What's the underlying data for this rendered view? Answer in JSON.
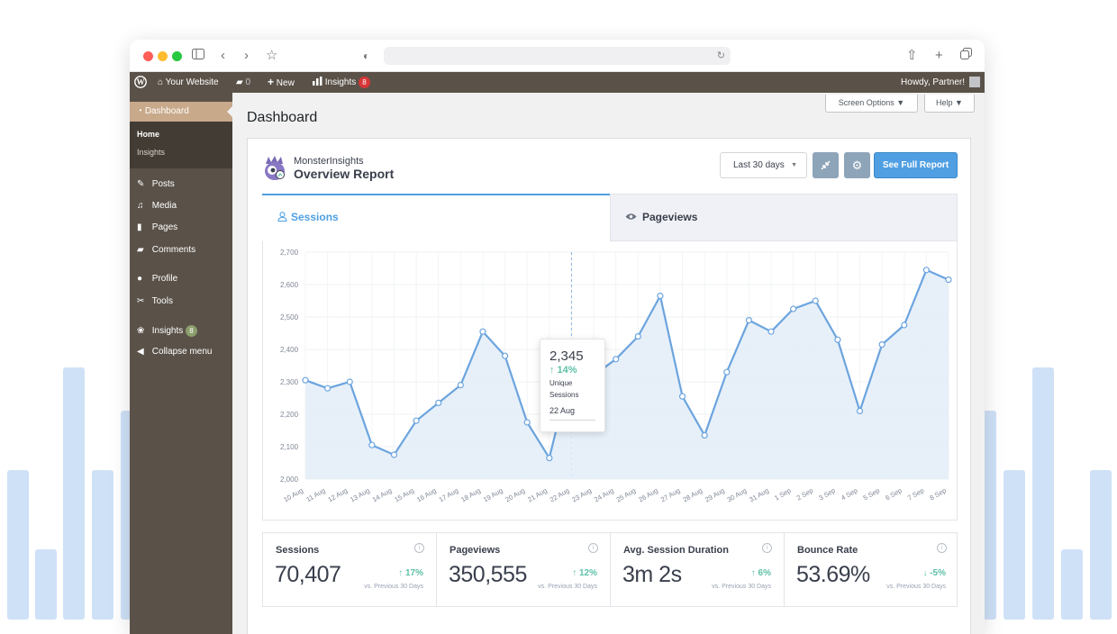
{
  "browser": {
    "traffic_lights": [
      "#ff5f57",
      "#febc2e",
      "#28c840"
    ],
    "icons": [
      "sidebar-icon",
      "back-icon",
      "forward-icon",
      "star-icon",
      "shield-icon",
      "reload-icon",
      "share-icon",
      "plus-icon",
      "tabs-icon"
    ]
  },
  "admin_bar": {
    "site_name": "Your Website",
    "comments_count": "0",
    "new_label": "New",
    "insights_label": "Insights",
    "insights_badge": "8",
    "howdy": "Howdy, Partner!"
  },
  "sidebar": {
    "dashboard": "Dashboard",
    "sub_items": [
      "Home",
      "Insights"
    ],
    "items": [
      {
        "label": "Posts",
        "icon": "pin-icon"
      },
      {
        "label": "Media",
        "icon": "media-icon"
      },
      {
        "label": "Pages",
        "icon": "pages-icon"
      },
      {
        "label": "Comments",
        "icon": "comment-icon"
      },
      {
        "label": "Profile",
        "icon": "user-icon"
      },
      {
        "label": "Tools",
        "icon": "wrench-icon"
      },
      {
        "label": "Insights",
        "icon": "insights-icon",
        "badge": "8"
      },
      {
        "label": "Collapse menu",
        "icon": "collapse-icon"
      }
    ]
  },
  "screen_options": "Screen Options ▼",
  "help": "Help ▼",
  "page_title": "Dashboard",
  "report": {
    "brand": "MonsterInsights",
    "title": "Overview Report",
    "period": "Last 30 days",
    "full_report": "See Full Report",
    "tab_sessions": "Sessions",
    "tab_pageviews": "Pageviews"
  },
  "tooltip": {
    "value": "2,345",
    "change": "↑ 14%",
    "label": "Unique Sessions",
    "date": "22 Aug"
  },
  "chart_data": {
    "type": "area",
    "x": [
      "10 Aug",
      "11 Aug",
      "12 Aug",
      "13 Aug",
      "14 Aug",
      "15 Aug",
      "16 Aug",
      "17 Aug",
      "18 Aug",
      "19 Aug",
      "20 Aug",
      "21 Aug",
      "22 Aug",
      "23 Aug",
      "24 Aug",
      "25 Aug",
      "26 Aug",
      "27 Aug",
      "28 Aug",
      "29 Aug",
      "30 Aug",
      "31 Aug",
      "1 Sep",
      "2 Sep",
      "3 Sep",
      "4 Sep",
      "5 Sep",
      "6 Sep",
      "7 Sep",
      "8 Sep"
    ],
    "values": [
      2305,
      2280,
      2300,
      2105,
      2075,
      2180,
      2235,
      2290,
      2455,
      2380,
      2175,
      2065,
      2345,
      2320,
      2370,
      2440,
      2565,
      2255,
      2135,
      2330,
      2490,
      2455,
      2525,
      2550,
      2430,
      2210,
      2415,
      2475,
      2645,
      2615
    ],
    "ylim": [
      2000,
      2700
    ],
    "yticks": [
      "2,000",
      "2,100",
      "2,200",
      "2,300",
      "2,400",
      "2,500",
      "2,600",
      "2,700"
    ],
    "grid": true,
    "line_color": "#6ca4de",
    "fill_color": "#e3edf8"
  },
  "stats": [
    {
      "label": "Sessions",
      "value": "70,407",
      "change": "↑ 17%",
      "dir": "up",
      "prev": "vs. Previous 30 Days"
    },
    {
      "label": "Pageviews",
      "value": "350,555",
      "change": "↑ 12%",
      "dir": "up",
      "prev": "vs. Previous 30 Days"
    },
    {
      "label": "Avg. Session Duration",
      "value": "3m 2s",
      "change": "↑ 6%",
      "dir": "up",
      "prev": "vs. Previous 30 Days"
    },
    {
      "label": "Bounce Rate",
      "value": "53.69%",
      "change": "↓ -5%",
      "dir": "down",
      "prev": "vs. Previous 30 Days"
    }
  ],
  "colors": {
    "up": "#5cc0a7",
    "down": "#5cc0a7",
    "accent": "#509fe2",
    "wp_bar": "#5a5249"
  }
}
